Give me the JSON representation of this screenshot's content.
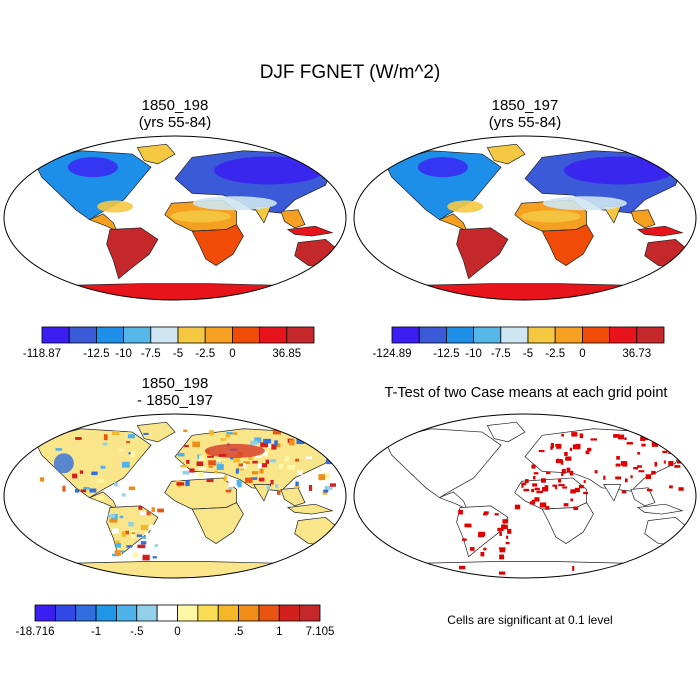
{
  "figure": {
    "title": "DJF FGNET (W/m^2)"
  },
  "panels": [
    {
      "title_line1": "1850_198",
      "title_line2": "(yrs 55-84)"
    },
    {
      "title_line1": "1850_197",
      "title_line2": "(yrs 55-84)"
    },
    {
      "title_line1": "1850_198",
      "title_line2": "- 1850_197"
    },
    {
      "title": "T-Test of two Case means at each grid point",
      "note": "Cells are significant at 0.1 level"
    }
  ],
  "colorbars": [
    {
      "colors": [
        "#3b1ff2",
        "#3a5ad8",
        "#1e8fe8",
        "#55b6e8",
        "#cfe6f2",
        "#f5c842",
        "#f5a020",
        "#f04c08",
        "#e8141b",
        "#c4282a"
      ],
      "labels": [
        "-118.87",
        "",
        "-12.5",
        "-10",
        "-7.5",
        "-5",
        "-2.5",
        "0",
        "",
        "36.85"
      ]
    },
    {
      "colors": [
        "#3b1ff2",
        "#3a5ad8",
        "#1e8fe8",
        "#55b6e8",
        "#cfe6f2",
        "#f5c842",
        "#f5a020",
        "#f04c08",
        "#e8141b",
        "#c4282a"
      ],
      "labels": [
        "-124.89",
        "",
        "-12.5",
        "-10",
        "-7.5",
        "-5",
        "-2.5",
        "0",
        "",
        "36.73"
      ]
    },
    {
      "colors": [
        "#3b1ff2",
        "#3048e6",
        "#2f6fe0",
        "#2096ea",
        "#4fb3ea",
        "#92d0ea",
        "#ffffff",
        "#fff6a6",
        "#f9dd55",
        "#f5b72a",
        "#f08c18",
        "#e85512",
        "#d4201c",
        "#c4282a"
      ],
      "labels": [
        "-18.716",
        "",
        "",
        "-1",
        "",
        "-.5",
        "",
        "0",
        "",
        "",
        ".5",
        "",
        "1",
        "",
        "7.105"
      ]
    }
  ],
  "map_colors": {
    "antarctica": "#e8141b",
    "australia": "#c4282a",
    "africa_south": "#f04c08",
    "africa_north": "#f5a020",
    "south_america": "#c4282a",
    "eurasia": "#3a5ad8",
    "north_america": "#1e8fe8",
    "diff_land": "#f9e68a",
    "ttest_signif": "#e00000"
  }
}
